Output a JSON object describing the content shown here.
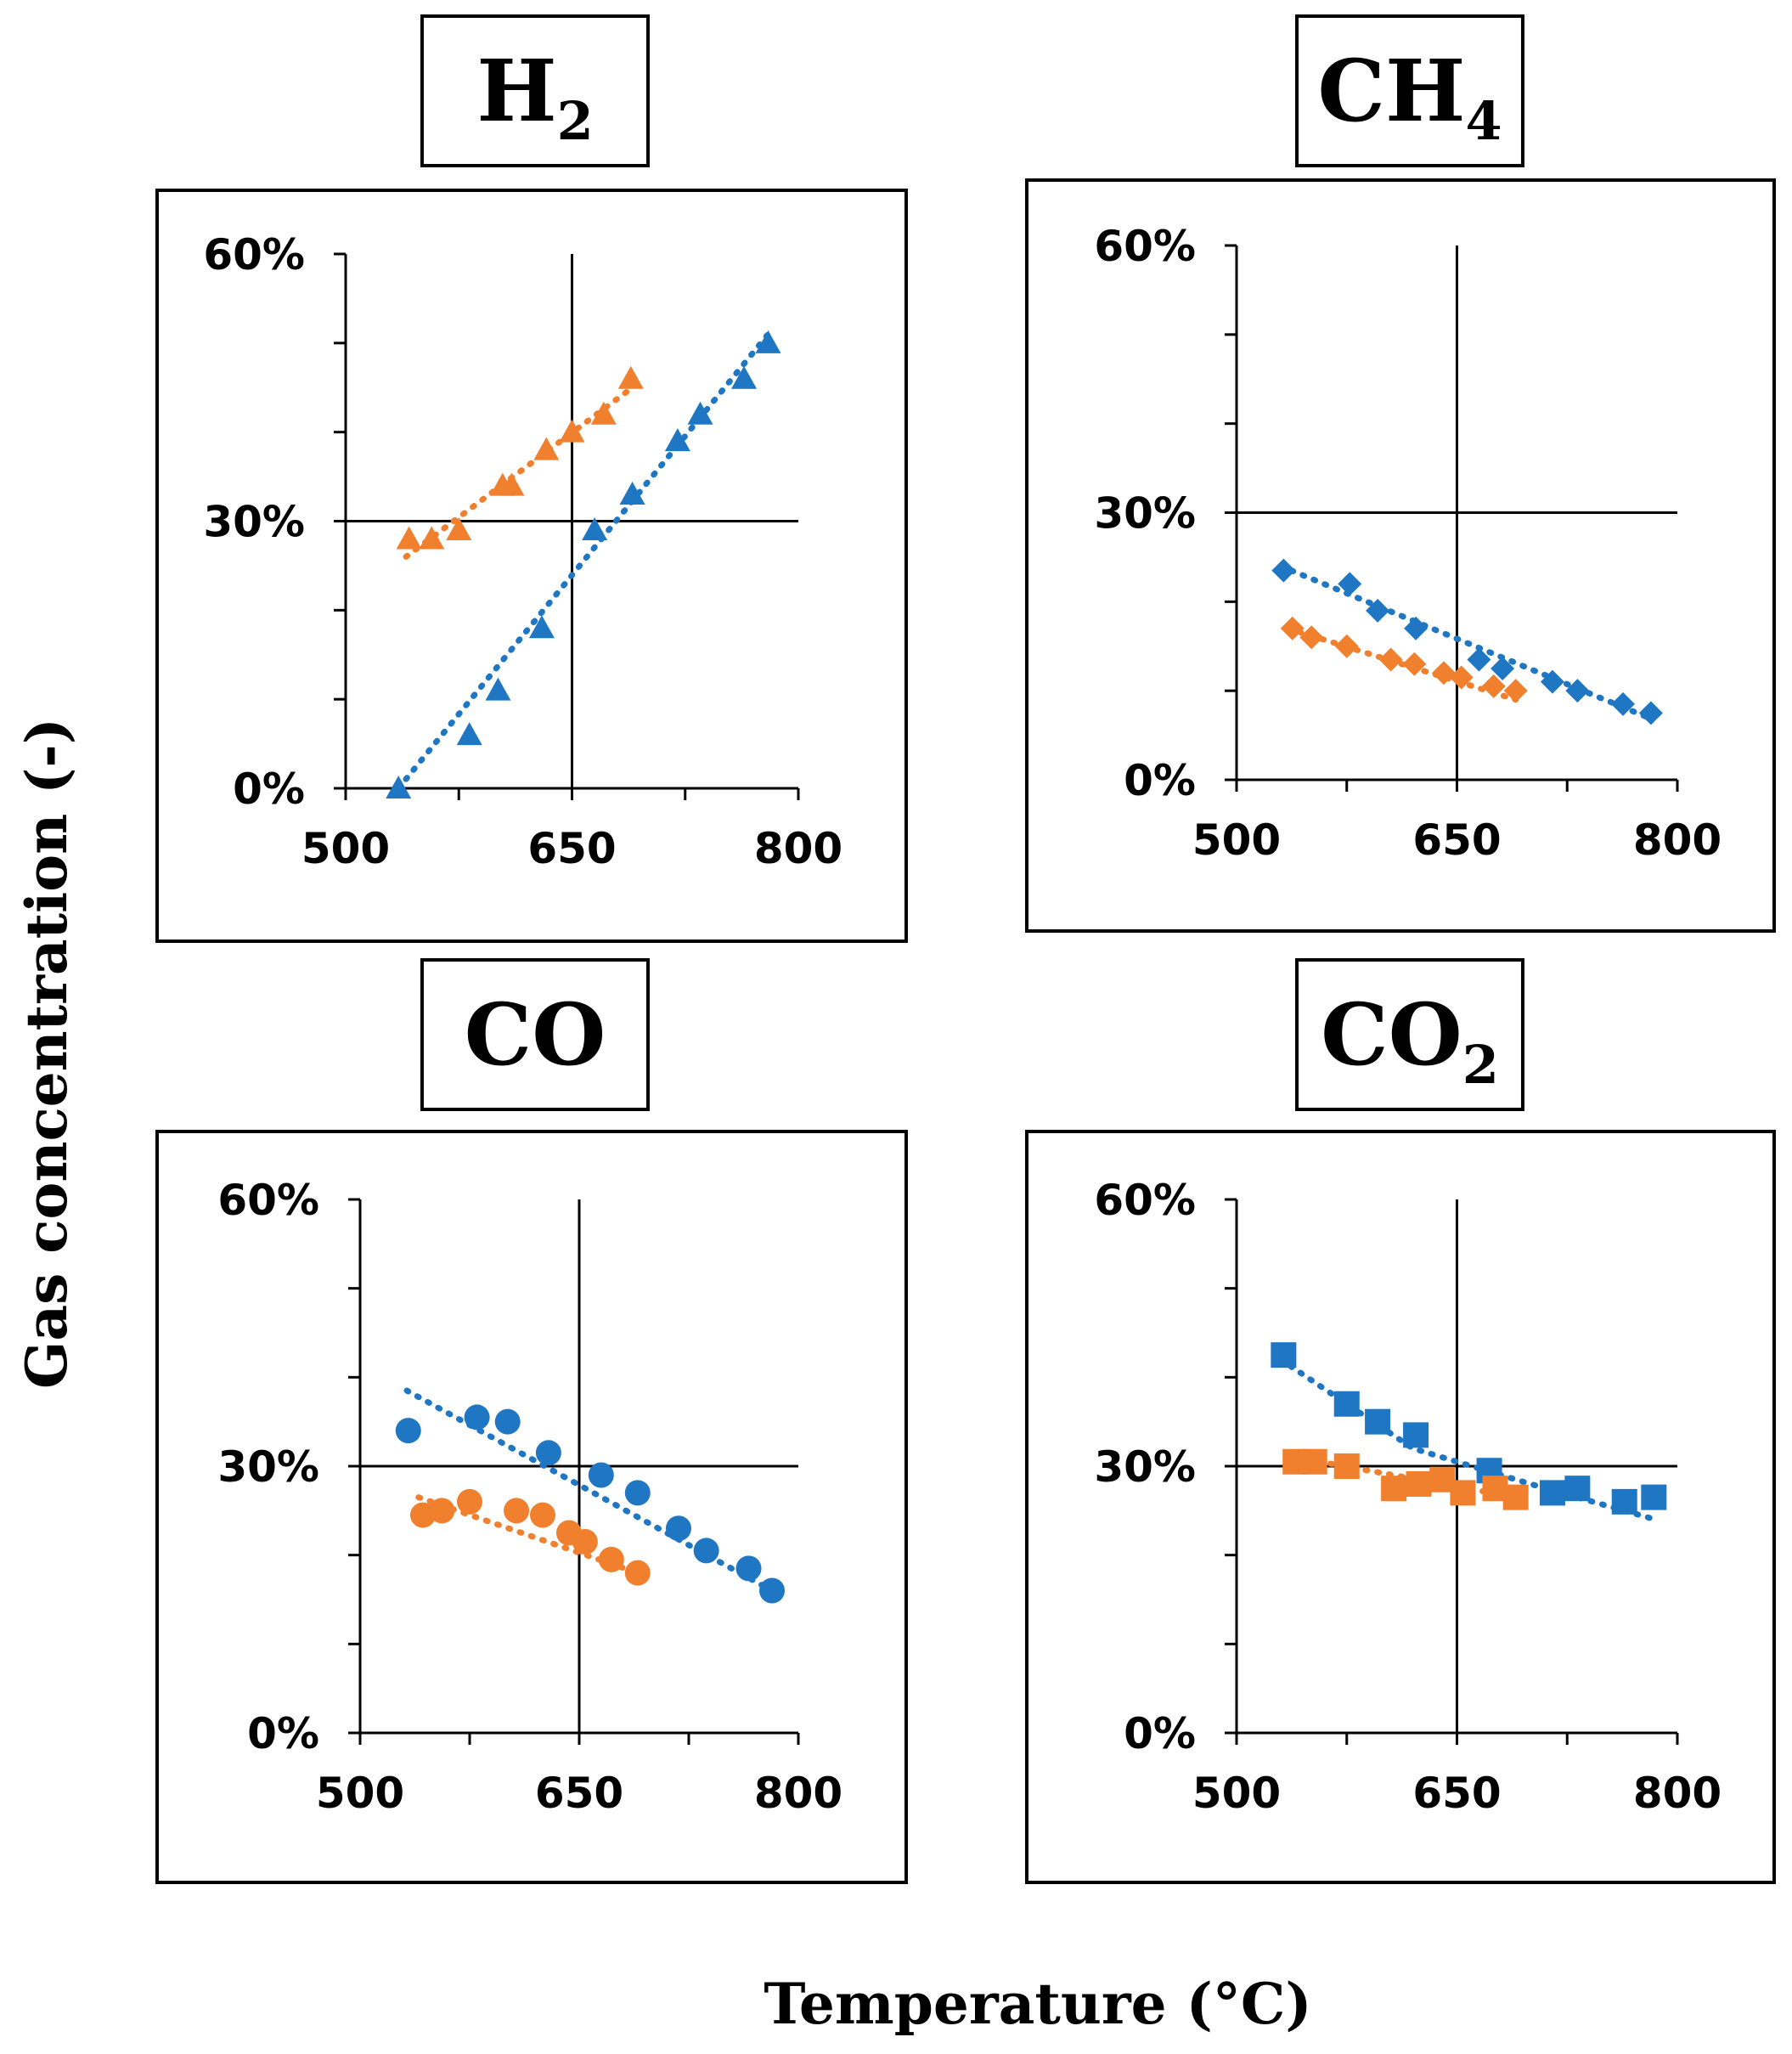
{
  "figure": {
    "ylabel": "Gas concentration (-)",
    "xlabel": "Temperature (°C)"
  },
  "colors": {
    "blue": "#1f77c4",
    "orange": "#f07f2e",
    "axis": "#000000"
  },
  "chart_data": [
    {
      "id": "h2",
      "title": "H",
      "title_sub": "2",
      "type": "scatter",
      "marker": "triangle",
      "xlim": [
        500,
        800
      ],
      "ylim": [
        0,
        0.6
      ],
      "xticks": [
        500,
        650,
        800
      ],
      "xtick_labels": [
        "500",
        "650",
        "800"
      ],
      "yticks": [
        0,
        0.3,
        0.6
      ],
      "ytick_labels": [
        "0%",
        "30%",
        "60%"
      ],
      "series": [
        {
          "name": "blue",
          "color": "blue",
          "trend": [
            [
              535,
              0.0
            ],
            [
              780,
              0.51
            ]
          ],
          "x": [
            535,
            582,
            601,
            630,
            665,
            690,
            720,
            735,
            764,
            780
          ],
          "y": [
            0.0,
            0.06,
            0.11,
            0.18,
            0.29,
            0.33,
            0.39,
            0.42,
            0.46,
            0.5
          ]
        },
        {
          "name": "orange",
          "color": "orange",
          "trend": [
            [
              540,
              0.26
            ],
            [
              690,
              0.45
            ]
          ],
          "x": [
            542,
            557,
            575,
            604,
            610,
            633,
            650,
            671,
            689
          ],
          "y": [
            0.28,
            0.28,
            0.29,
            0.34,
            0.34,
            0.38,
            0.4,
            0.42,
            0.46
          ]
        }
      ]
    },
    {
      "id": "ch4",
      "title": "CH",
      "title_sub": "4",
      "type": "scatter",
      "marker": "diamond",
      "xlim": [
        500,
        800
      ],
      "ylim": [
        0,
        0.6
      ],
      "xticks": [
        500,
        650,
        800
      ],
      "xtick_labels": [
        "500",
        "650",
        "800"
      ],
      "yticks": [
        0,
        0.3,
        0.6
      ],
      "ytick_labels": [
        "0%",
        "30%",
        "60%"
      ],
      "series": [
        {
          "name": "blue",
          "color": "blue",
          "trend": [
            [
              530,
              0.24
            ],
            [
              780,
              0.07
            ]
          ],
          "x": [
            532,
            577,
            596,
            622,
            665,
            681,
            715,
            732,
            763,
            782
          ],
          "y": [
            0.235,
            0.22,
            0.19,
            0.17,
            0.135,
            0.125,
            0.11,
            0.1,
            0.085,
            0.075
          ]
        },
        {
          "name": "orange",
          "color": "orange",
          "trend": [
            [
              535,
              0.17
            ],
            [
              690,
              0.09
            ]
          ],
          "x": [
            538,
            551,
            575,
            605,
            621,
            641,
            653,
            675,
            690
          ],
          "y": [
            0.17,
            0.16,
            0.15,
            0.135,
            0.13,
            0.12,
            0.115,
            0.105,
            0.1
          ]
        }
      ]
    },
    {
      "id": "co",
      "title": "CO",
      "title_sub": "",
      "type": "scatter",
      "marker": "circle",
      "xlim": [
        500,
        800
      ],
      "ylim": [
        0,
        0.6
      ],
      "xticks": [
        500,
        650,
        800
      ],
      "xtick_labels": [
        "500",
        "650",
        "800"
      ],
      "yticks": [
        0,
        0.3,
        0.6
      ],
      "ytick_labels": [
        "0%",
        "30%",
        "60%"
      ],
      "series": [
        {
          "name": "blue",
          "color": "blue",
          "trend": [
            [
              532,
              0.385
            ],
            [
              782,
              0.16
            ]
          ],
          "x": [
            533,
            580,
            601,
            629,
            665,
            690,
            718,
            737,
            766,
            782
          ],
          "y": [
            0.34,
            0.355,
            0.35,
            0.315,
            0.29,
            0.27,
            0.23,
            0.205,
            0.185,
            0.16
          ]
        },
        {
          "name": "orange",
          "color": "orange",
          "trend": [
            [
              540,
              0.265
            ],
            [
              690,
              0.18
            ]
          ],
          "x": [
            543,
            556,
            575,
            607,
            625,
            643,
            654,
            672,
            690
          ],
          "y": [
            0.245,
            0.25,
            0.26,
            0.25,
            0.245,
            0.225,
            0.215,
            0.195,
            0.18
          ]
        }
      ]
    },
    {
      "id": "co2",
      "title": "CO",
      "title_sub": "2",
      "type": "scatter",
      "marker": "square",
      "xlim": [
        500,
        800
      ],
      "ylim": [
        0,
        0.6
      ],
      "xticks": [
        500,
        650,
        800
      ],
      "xtick_labels": [
        "500",
        "650",
        "800"
      ],
      "yticks": [
        0,
        0.3,
        0.6
      ],
      "ytick_labels": [
        "0%",
        "30%",
        "60%"
      ],
      "series": [
        {
          "name": "blue",
          "color": "blue",
          "trend": [
            [
              530,
              0.42
            ],
            [
              620,
              0.32
            ],
            [
              700,
              0.28
            ],
            [
              785,
              0.24
            ]
          ],
          "x": [
            532,
            575,
            596,
            622,
            672,
            715,
            732,
            764,
            784
          ],
          "y": [
            0.425,
            0.37,
            0.35,
            0.335,
            0.295,
            0.27,
            0.275,
            0.26,
            0.265
          ]
        },
        {
          "name": "orange",
          "color": "orange",
          "trend": [
            [
              540,
              0.31
            ],
            [
              690,
              0.265
            ]
          ],
          "x": [
            540,
            553,
            575,
            607,
            624,
            640,
            654,
            676,
            690
          ],
          "y": [
            0.305,
            0.305,
            0.3,
            0.275,
            0.28,
            0.285,
            0.27,
            0.275,
            0.265
          ]
        }
      ]
    }
  ]
}
